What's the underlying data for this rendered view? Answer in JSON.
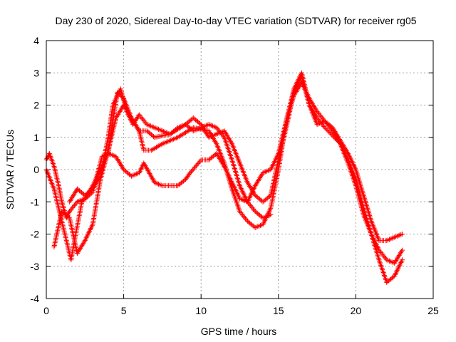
{
  "chart_data": {
    "type": "scatter",
    "title": "Day 230 of 2020, Sidereal Day-to-day VTEC variation (SDTVAR) for receiver rg05",
    "xlabel": "GPS time / hours",
    "ylabel": "SDTVAR / TECUs",
    "xlim": [
      0,
      25
    ],
    "ylim": [
      -4,
      4
    ],
    "xticks": [
      0,
      5,
      10,
      15,
      20,
      25
    ],
    "yticks": [
      -4,
      -3,
      -2,
      -1,
      0,
      1,
      2,
      3,
      4
    ],
    "grid": true,
    "marker": "plus",
    "color": "#ff0000",
    "series": [
      {
        "name": "track-1",
        "points": [
          [
            0,
            0.3
          ],
          [
            0.2,
            0.5
          ],
          [
            0.5,
            0.1
          ],
          [
            0.8,
            -0.5
          ],
          [
            1.0,
            -1.0
          ],
          [
            1.3,
            -1.5
          ],
          [
            1.5,
            -1.3
          ],
          [
            2.0,
            -1.0
          ],
          [
            2.5,
            -0.9
          ],
          [
            3.0,
            -0.5
          ],
          [
            3.5,
            0.0
          ],
          [
            4.0,
            0.5
          ],
          [
            4.3,
            1.5
          ],
          [
            4.6,
            2.4
          ],
          [
            5.0,
            2.2
          ],
          [
            5.5,
            1.6
          ],
          [
            6.0,
            1.2
          ],
          [
            6.3,
            0.6
          ],
          [
            6.8,
            0.6
          ],
          [
            7.5,
            0.8
          ],
          [
            8.5,
            1.0
          ],
          [
            9.5,
            1.3
          ],
          [
            10.5,
            1.2
          ],
          [
            11.0,
            0.8
          ],
          [
            11.5,
            0.2
          ],
          [
            12.0,
            -0.6
          ],
          [
            12.5,
            -1.3
          ],
          [
            13.0,
            -1.6
          ],
          [
            13.5,
            -1.8
          ],
          [
            14.0,
            -1.7
          ],
          [
            14.5,
            -1.2
          ],
          [
            15.0,
            0.0
          ],
          [
            15.5,
            1.5
          ],
          [
            16.0,
            2.5
          ],
          [
            16.5,
            3.0
          ],
          [
            17.0,
            2.0
          ],
          [
            17.5,
            1.6
          ],
          [
            18.0,
            1.3
          ],
          [
            19.0,
            0.8
          ],
          [
            19.5,
            0.3
          ],
          [
            20.0,
            -0.3
          ],
          [
            20.5,
            -1.2
          ],
          [
            21.0,
            -2.0
          ],
          [
            21.5,
            -2.8
          ],
          [
            22.0,
            -3.5
          ],
          [
            22.5,
            -3.3
          ],
          [
            23.0,
            -2.8
          ]
        ]
      },
      {
        "name": "track-2",
        "points": [
          [
            0,
            0.0
          ],
          [
            0.5,
            -0.6
          ],
          [
            1.0,
            -1.6
          ],
          [
            1.3,
            -2.2
          ],
          [
            1.6,
            -2.8
          ],
          [
            1.9,
            -2.0
          ],
          [
            2.3,
            -1.0
          ],
          [
            3.0,
            -0.7
          ],
          [
            3.6,
            0.4
          ],
          [
            4.0,
            0.5
          ],
          [
            4.5,
            0.4
          ],
          [
            5.0,
            0.0
          ],
          [
            5.5,
            -0.2
          ],
          [
            6.0,
            -0.1
          ],
          [
            6.3,
            0.2
          ],
          [
            7.0,
            -0.4
          ],
          [
            7.5,
            -0.5
          ],
          [
            8.5,
            -0.5
          ],
          [
            9.0,
            -0.3
          ],
          [
            9.3,
            -0.1
          ],
          [
            10.0,
            0.3
          ],
          [
            10.5,
            0.3
          ],
          [
            11.0,
            0.5
          ],
          [
            11.5,
            0.1
          ],
          [
            12.0,
            -0.4
          ],
          [
            12.5,
            -0.9
          ],
          [
            13.0,
            -1.0
          ],
          [
            13.5,
            -0.5
          ],
          [
            14.0,
            -0.1
          ],
          [
            14.5,
            0.0
          ],
          [
            15.0,
            0.5
          ],
          [
            15.5,
            1.5
          ],
          [
            16.0,
            2.3
          ],
          [
            16.5,
            2.7
          ],
          [
            17.0,
            2.2
          ],
          [
            17.5,
            1.8
          ],
          [
            18.0,
            1.5
          ],
          [
            18.5,
            1.2
          ],
          [
            19.0,
            0.8
          ],
          [
            19.5,
            0.2
          ],
          [
            20.0,
            -0.5
          ],
          [
            20.5,
            -1.4
          ],
          [
            21.0,
            -2.0
          ],
          [
            21.5,
            -2.5
          ],
          [
            22.0,
            -2.8
          ],
          [
            22.5,
            -2.9
          ],
          [
            23.0,
            -2.5
          ]
        ]
      },
      {
        "name": "track-3",
        "points": [
          [
            0.5,
            -2.4
          ],
          [
            1.0,
            -1.3
          ],
          [
            1.5,
            -1.5
          ],
          [
            2.0,
            -2.6
          ],
          [
            2.5,
            -2.2
          ],
          [
            3.0,
            -1.7
          ],
          [
            3.5,
            -0.3
          ],
          [
            4.0,
            0.6
          ],
          [
            4.5,
            1.6
          ],
          [
            5.0,
            2.0
          ],
          [
            5.5,
            1.6
          ],
          [
            6.0,
            1.2
          ],
          [
            6.5,
            1.2
          ],
          [
            7.0,
            1.0
          ],
          [
            8.0,
            1.1
          ],
          [
            9.0,
            1.4
          ],
          [
            9.5,
            1.6
          ],
          [
            10.0,
            1.4
          ],
          [
            10.5,
            1.0
          ],
          [
            11.0,
            1.1
          ],
          [
            11.5,
            1.2
          ],
          [
            12.0,
            0.8
          ],
          [
            12.5,
            0.2
          ],
          [
            13.0,
            -0.4
          ],
          [
            13.5,
            -0.8
          ],
          [
            14.0,
            -1.0
          ],
          [
            14.5,
            -0.8
          ],
          [
            15.0,
            0.3
          ],
          [
            15.5,
            1.3
          ],
          [
            16.0,
            2.4
          ],
          [
            16.5,
            2.9
          ],
          [
            17.0,
            2.0
          ],
          [
            17.5,
            1.4
          ],
          [
            18.0,
            1.5
          ],
          [
            18.5,
            1.3
          ],
          [
            19.0,
            0.9
          ],
          [
            19.5,
            0.5
          ],
          [
            20.0,
            0.0
          ],
          [
            20.5,
            -0.8
          ],
          [
            21.0,
            -1.6
          ],
          [
            21.5,
            -2.2
          ],
          [
            22.0,
            -2.2
          ],
          [
            22.5,
            -2.1
          ],
          [
            23.0,
            -2.0
          ]
        ]
      },
      {
        "name": "track-4",
        "points": [
          [
            1.5,
            -1.0
          ],
          [
            2.0,
            -0.6
          ],
          [
            2.5,
            -0.8
          ],
          [
            3.0,
            -0.6
          ],
          [
            3.5,
            -0.2
          ],
          [
            4.0,
            1.0
          ],
          [
            4.3,
            2.0
          ],
          [
            4.8,
            2.5
          ],
          [
            5.2,
            1.8
          ],
          [
            5.6,
            1.4
          ],
          [
            6.0,
            1.7
          ],
          [
            6.5,
            1.4
          ],
          [
            7.0,
            1.3
          ],
          [
            7.5,
            1.2
          ],
          [
            8.0,
            1.1
          ],
          [
            8.5,
            1.3
          ],
          [
            9.0,
            1.4
          ],
          [
            9.5,
            1.2
          ],
          [
            10.0,
            1.3
          ],
          [
            10.5,
            1.4
          ],
          [
            11.0,
            1.3
          ],
          [
            11.5,
            1.0
          ],
          [
            12.0,
            0.3
          ],
          [
            12.5,
            -0.5
          ],
          [
            13.0,
            -1.0
          ],
          [
            13.5,
            -1.3
          ],
          [
            14.0,
            -1.5
          ],
          [
            14.5,
            -1.4
          ]
        ]
      }
    ]
  }
}
